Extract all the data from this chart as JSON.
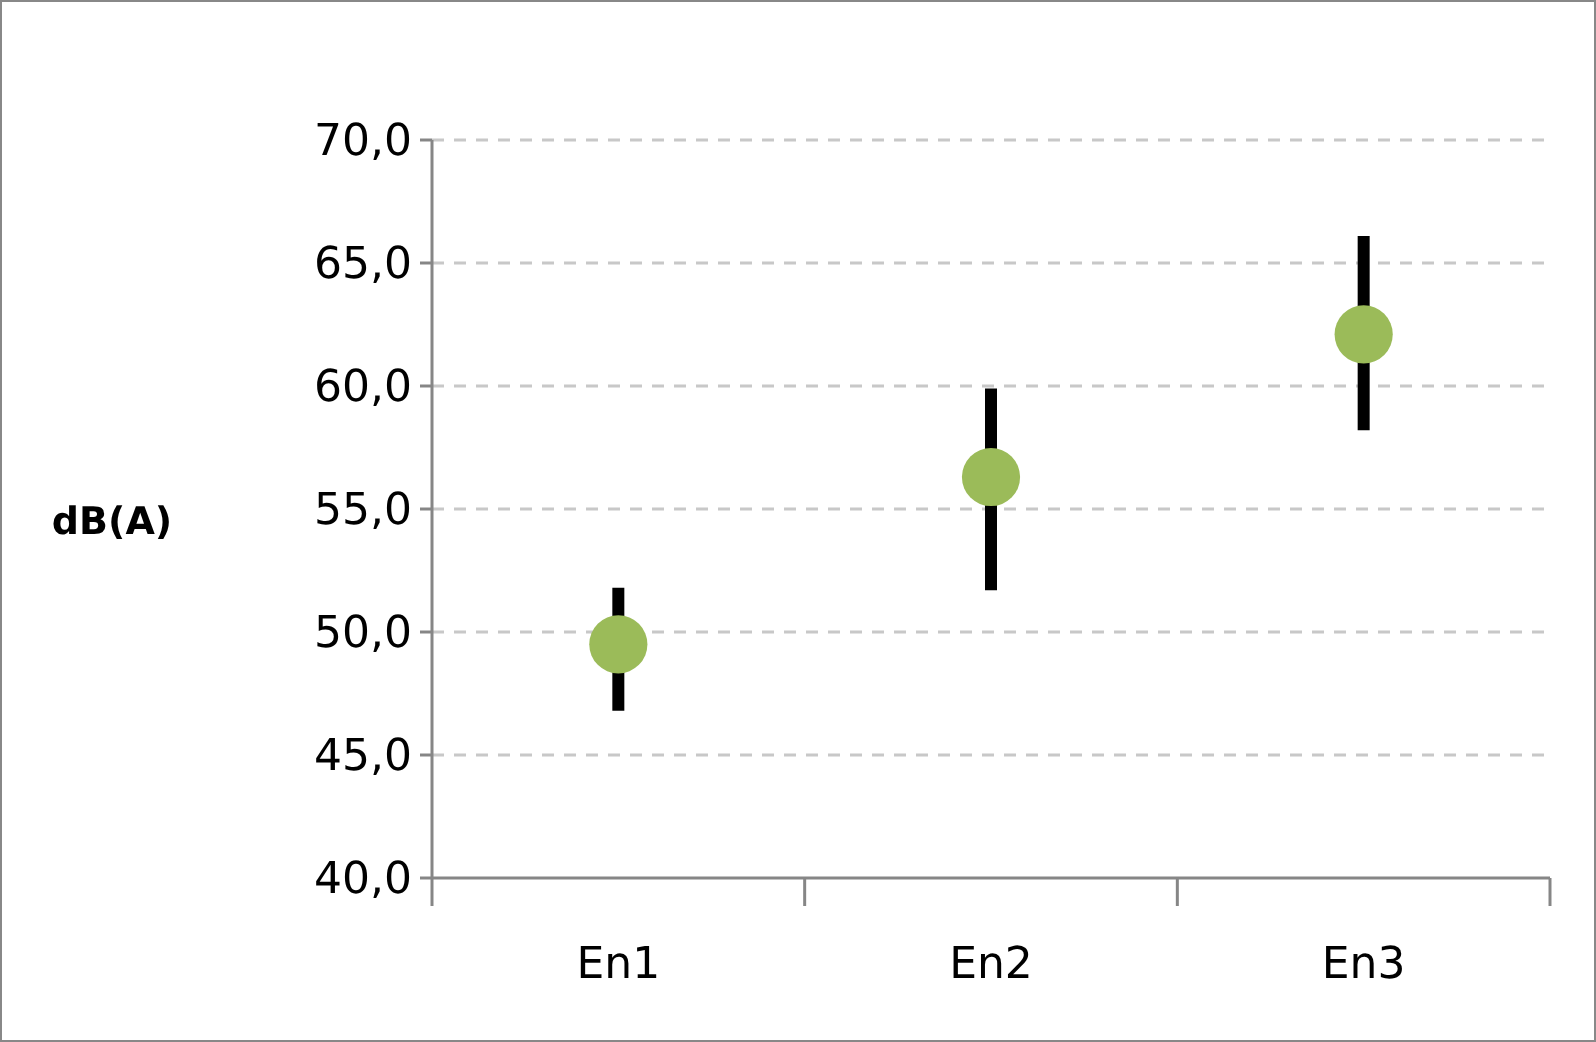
{
  "chart_data": {
    "type": "scatter",
    "ylabel": "dB(A)",
    "categories": [
      "En1",
      "En2",
      "En3"
    ],
    "series": [
      {
        "color": "#9bbb59",
        "values": [
          49.5,
          56.3,
          62.1
        ],
        "errors": [
          [
            46.8,
            51.8
          ],
          [
            51.7,
            59.9
          ],
          [
            58.2,
            66.1
          ]
        ]
      }
    ],
    "ylim": [
      40,
      70
    ],
    "yticks": [
      {
        "value": 40,
        "label": "40,0"
      },
      {
        "value": 45,
        "label": "45,0"
      },
      {
        "value": 50,
        "label": "50,0"
      },
      {
        "value": 55,
        "label": "55,0"
      },
      {
        "value": 60,
        "label": "60,0"
      },
      {
        "value": 65,
        "label": "65,0"
      },
      {
        "value": 70,
        "label": "70,0"
      }
    ],
    "grid": "y",
    "marker": "circle"
  }
}
